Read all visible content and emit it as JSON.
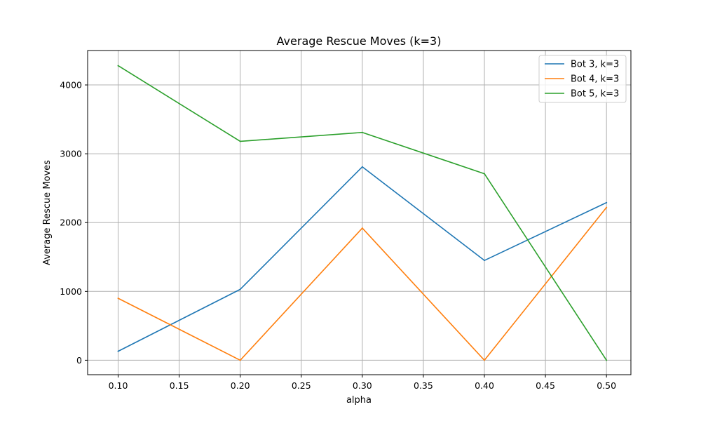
{
  "chart_data": {
    "type": "line",
    "title": "Average Rescue Moves (k=3)",
    "xlabel": "alpha",
    "ylabel": "Average Rescue Moves",
    "x": [
      0.1,
      0.2,
      0.3,
      0.4,
      0.5
    ],
    "xlim": [
      0.075,
      0.52
    ],
    "ylim": [
      -210,
      4500
    ],
    "xticks": [
      "0.10",
      "0.15",
      "0.20",
      "0.25",
      "0.30",
      "0.35",
      "0.40",
      "0.45",
      "0.50"
    ],
    "yticks": [
      "0",
      "1000",
      "2000",
      "3000",
      "4000"
    ],
    "grid": true,
    "legend_position": "top-right",
    "series": [
      {
        "name": "Bot 3, k=3",
        "color": "#1f77b4",
        "values": [
          130,
          1030,
          2810,
          1450,
          2290
        ]
      },
      {
        "name": "Bot 4, k=3",
        "color": "#ff7f0e",
        "values": [
          900,
          0,
          1920,
          0,
          2220
        ]
      },
      {
        "name": "Bot 5, k=3",
        "color": "#2ca02c",
        "values": [
          4280,
          3180,
          3310,
          2710,
          0
        ]
      }
    ]
  }
}
